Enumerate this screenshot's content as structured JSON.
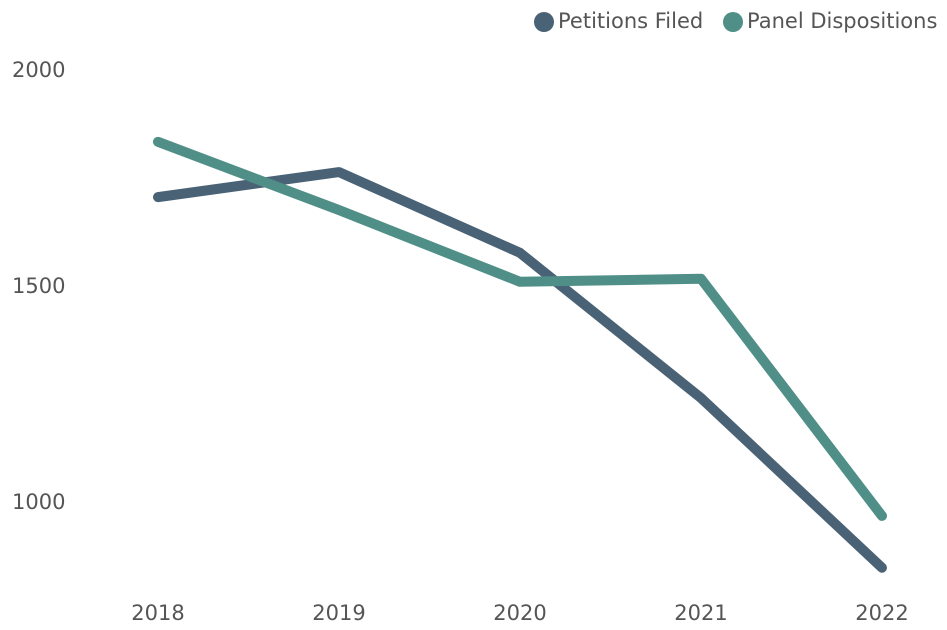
{
  "chart_data": {
    "type": "line",
    "categories": [
      "2018",
      "2019",
      "2020",
      "2021",
      "2022"
    ],
    "series": [
      {
        "name": "Petitions Filed",
        "color": "#4a6275",
        "values": [
          1708,
          1766,
          1579,
          1243,
          850
        ]
      },
      {
        "name": "Panel Dispositions",
        "color": "#4f8f87",
        "values": [
          1836,
          1678,
          1512,
          1519,
          970
        ]
      }
    ],
    "ylim": [
      830,
      2050
    ],
    "yticks": [
      1000,
      1500,
      2000
    ],
    "grid": false,
    "legend": "top-right"
  }
}
